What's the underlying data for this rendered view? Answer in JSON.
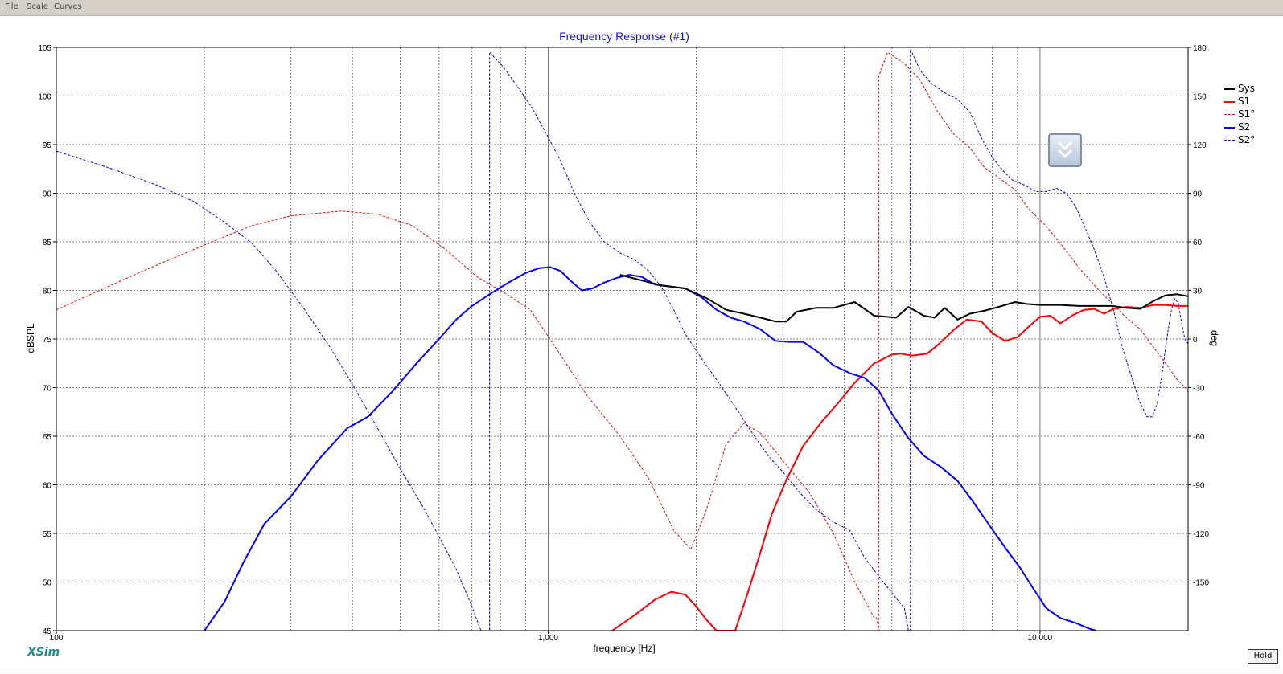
{
  "menu": {
    "file": "File",
    "scale": "Scale",
    "curves": "Curves"
  },
  "brand": "XSim",
  "hold_button": "Hold",
  "colors": {
    "sys": "#000000",
    "s1": "#ff0000",
    "s2": "#0000ff",
    "title": "#1515e0"
  },
  "chart_data": {
    "type": "line",
    "title": "Frequency Response (#1)",
    "xlabel": "frequency [Hz]",
    "ylabel": "dBSPL",
    "ylabel_right": "deg",
    "x_scale": "log",
    "xlim": [
      100,
      20000
    ],
    "ylim": [
      45,
      105
    ],
    "ylim_right": [
      -180,
      180
    ],
    "x_ticks": [
      100,
      1000,
      10000
    ],
    "x_tick_labels": [
      "100",
      "1,000",
      "10,000"
    ],
    "y_ticks": [
      45,
      50,
      55,
      60,
      65,
      70,
      75,
      80,
      85,
      90,
      95,
      100,
      105
    ],
    "y_tick_labels": [
      "45",
      "50",
      "55",
      "60",
      "65",
      "70",
      "75",
      "80",
      "85",
      "90",
      "95",
      "100",
      "105"
    ],
    "y2_ticks": [
      -150,
      -120,
      -90,
      -60,
      -30,
      0,
      30,
      60,
      90,
      120,
      150,
      180
    ],
    "y2_tick_labels": [
      "-150",
      "-120",
      "-90",
      "-60",
      "-30",
      "0",
      "30",
      "60",
      "90",
      "120",
      "150",
      "180"
    ],
    "grid": true,
    "legend_position": "right",
    "series": [
      {
        "name": "Sys",
        "axis": "left",
        "style": "solid",
        "color": "#000000",
        "width": 2,
        "points": [
          [
            1400,
            81.6
          ],
          [
            1700,
            80.5
          ],
          [
            1900,
            80.2
          ],
          [
            2100,
            79.2
          ],
          [
            2300,
            78
          ],
          [
            2500,
            77.6
          ],
          [
            2700,
            77.2
          ],
          [
            2900,
            76.8
          ],
          [
            3050,
            76.8
          ],
          [
            3200,
            77.8
          ],
          [
            3500,
            78.2
          ],
          [
            3800,
            78.2
          ],
          [
            4200,
            78.8
          ],
          [
            4600,
            77.4
          ],
          [
            5100,
            77.2
          ],
          [
            5400,
            78.3
          ],
          [
            5800,
            77.4
          ],
          [
            6100,
            77.2
          ],
          [
            6400,
            78.2
          ],
          [
            6800,
            77
          ],
          [
            7200,
            77.6
          ],
          [
            7700,
            77.9
          ],
          [
            8100,
            78.2
          ],
          [
            8500,
            78.5
          ],
          [
            8900,
            78.8
          ],
          [
            9400,
            78.6
          ],
          [
            10000,
            78.5
          ],
          [
            11000,
            78.5
          ],
          [
            12000,
            78.4
          ],
          [
            13000,
            78.4
          ],
          [
            14000,
            78.4
          ],
          [
            15000,
            78.2
          ],
          [
            16000,
            78.1
          ],
          [
            17000,
            78.9
          ],
          [
            18000,
            79.5
          ],
          [
            19000,
            79.6
          ],
          [
            20000,
            79.4
          ]
        ]
      },
      {
        "name": "S1",
        "axis": "left",
        "style": "solid",
        "color": "#ff0000",
        "width": 2,
        "points": [
          [
            1350,
            45
          ],
          [
            1500,
            46.6
          ],
          [
            1650,
            48.2
          ],
          [
            1780,
            49
          ],
          [
            1900,
            48.7
          ],
          [
            2000,
            47.5
          ],
          [
            2100,
            46.1
          ],
          [
            2200,
            45
          ],
          [
            2400,
            45
          ],
          [
            2550,
            49
          ],
          [
            2700,
            53
          ],
          [
            2850,
            57
          ],
          [
            3050,
            60.5
          ],
          [
            3300,
            64
          ],
          [
            3600,
            66.5
          ],
          [
            3900,
            68.5
          ],
          [
            4200,
            70.5
          ],
          [
            4600,
            72.5
          ],
          [
            5000,
            73.4
          ],
          [
            5200,
            73.5
          ],
          [
            5500,
            73.3
          ],
          [
            5900,
            73.5
          ],
          [
            6200,
            74.4
          ],
          [
            6700,
            76
          ],
          [
            7100,
            77
          ],
          [
            7600,
            76.8
          ],
          [
            8000,
            75.6
          ],
          [
            8500,
            74.8
          ],
          [
            9000,
            75.2
          ],
          [
            9500,
            76.3
          ],
          [
            10000,
            77.3
          ],
          [
            10500,
            77.4
          ],
          [
            11000,
            76.6
          ],
          [
            11700,
            77.5
          ],
          [
            12300,
            78
          ],
          [
            12900,
            78.1
          ],
          [
            13500,
            77.6
          ],
          [
            14100,
            78.1
          ],
          [
            15000,
            78.3
          ],
          [
            16000,
            78.2
          ],
          [
            17000,
            78.5
          ],
          [
            18000,
            78.5
          ],
          [
            19000,
            78.4
          ],
          [
            20000,
            78.4
          ]
        ]
      },
      {
        "name": "S1°",
        "axis": "right",
        "style": "dashed",
        "color": "#ff0000",
        "width": 1,
        "points": [
          [
            100,
            18
          ],
          [
            150,
            42
          ],
          [
            200,
            58
          ],
          [
            250,
            70
          ],
          [
            300,
            76
          ],
          [
            380,
            79
          ],
          [
            450,
            77
          ],
          [
            530,
            70
          ],
          [
            620,
            55
          ],
          [
            720,
            38
          ],
          [
            820,
            28
          ],
          [
            920,
            18
          ],
          [
            1050,
            -8
          ],
          [
            1200,
            -35
          ],
          [
            1400,
            -60
          ],
          [
            1600,
            -86
          ],
          [
            1800,
            -118
          ],
          [
            1950,
            -130
          ],
          [
            2100,
            -105
          ],
          [
            2300,
            -65
          ],
          [
            2500,
            -52
          ],
          [
            2700,
            -58
          ],
          [
            3000,
            -75
          ],
          [
            3400,
            -95
          ],
          [
            3800,
            -120
          ],
          [
            4200,
            -150
          ],
          [
            4600,
            -172
          ],
          [
            4650,
            -172
          ],
          [
            4700,
            162
          ],
          [
            4900,
            177
          ],
          [
            5300,
            170
          ],
          [
            5700,
            160
          ],
          [
            6200,
            140
          ],
          [
            6700,
            126
          ],
          [
            7200,
            118
          ],
          [
            7700,
            106
          ],
          [
            8300,
            99
          ],
          [
            8900,
            92
          ],
          [
            9500,
            80
          ],
          [
            10200,
            71
          ],
          [
            11000,
            59
          ],
          [
            12000,
            44
          ],
          [
            13000,
            32
          ],
          [
            14000,
            22
          ],
          [
            15000,
            13
          ],
          [
            16000,
            6
          ],
          [
            17000,
            -5
          ],
          [
            18000,
            -15
          ],
          [
            19000,
            -25
          ],
          [
            20000,
            -32
          ]
        ]
      },
      {
        "name": "S2",
        "axis": "left",
        "style": "solid",
        "color": "#0000ff",
        "width": 2,
        "points": [
          [
            200,
            45
          ],
          [
            220,
            48
          ],
          [
            240,
            52
          ],
          [
            265,
            56
          ],
          [
            300,
            58.8
          ],
          [
            340,
            62.5
          ],
          [
            390,
            65.8
          ],
          [
            430,
            67
          ],
          [
            480,
            69.5
          ],
          [
            540,
            72.5
          ],
          [
            600,
            75
          ],
          [
            650,
            77
          ],
          [
            700,
            78.4
          ],
          [
            760,
            79.6
          ],
          [
            830,
            80.8
          ],
          [
            900,
            81.8
          ],
          [
            960,
            82.3
          ],
          [
            1010,
            82.4
          ],
          [
            1060,
            82
          ],
          [
            1110,
            81
          ],
          [
            1170,
            80
          ],
          [
            1230,
            80.2
          ],
          [
            1300,
            80.8
          ],
          [
            1380,
            81.3
          ],
          [
            1460,
            81.6
          ],
          [
            1550,
            81.4
          ],
          [
            1650,
            80.6
          ],
          [
            1780,
            80.4
          ],
          [
            1900,
            80.2
          ],
          [
            2050,
            79.3
          ],
          [
            2200,
            78
          ],
          [
            2350,
            77.2
          ],
          [
            2500,
            76.8
          ],
          [
            2700,
            76
          ],
          [
            2900,
            74.8
          ],
          [
            3100,
            74.7
          ],
          [
            3300,
            74.7
          ],
          [
            3550,
            73.6
          ],
          [
            3800,
            72.3
          ],
          [
            4100,
            71.5
          ],
          [
            4400,
            71
          ],
          [
            4700,
            69.7
          ],
          [
            5000,
            67.3
          ],
          [
            5400,
            64.8
          ],
          [
            5800,
            63
          ],
          [
            6300,
            61.8
          ],
          [
            6800,
            60.4
          ],
          [
            7300,
            58.3
          ],
          [
            7900,
            55.8
          ],
          [
            8500,
            53.5
          ],
          [
            9100,
            51.5
          ],
          [
            9700,
            49.3
          ],
          [
            10300,
            47.3
          ],
          [
            11000,
            46.3
          ],
          [
            11800,
            45.8
          ],
          [
            12600,
            45.2
          ],
          [
            13000,
            45
          ]
        ]
      },
      {
        "name": "S2°",
        "axis": "right",
        "style": "dashed",
        "color": "#0000ff",
        "width": 1,
        "points": [
          [
            100,
            116
          ],
          [
            130,
            105
          ],
          [
            160,
            95
          ],
          [
            190,
            85
          ],
          [
            220,
            72
          ],
          [
            250,
            59
          ],
          [
            280,
            42
          ],
          [
            320,
            18
          ],
          [
            360,
            -5
          ],
          [
            400,
            -28
          ],
          [
            450,
            -55
          ],
          [
            500,
            -80
          ],
          [
            560,
            -105
          ],
          [
            600,
            -122
          ],
          [
            650,
            -142
          ],
          [
            700,
            -165
          ],
          [
            730,
            -180
          ],
          [
            760,
            -180
          ],
          [
            760,
            177
          ],
          [
            810,
            168
          ],
          [
            870,
            155
          ],
          [
            930,
            142
          ],
          [
            990,
            127
          ],
          [
            1060,
            110
          ],
          [
            1130,
            90
          ],
          [
            1210,
            73
          ],
          [
            1300,
            60
          ],
          [
            1400,
            53
          ],
          [
            1500,
            49
          ],
          [
            1600,
            42
          ],
          [
            1700,
            32
          ],
          [
            1800,
            18
          ],
          [
            1900,
            3
          ],
          [
            2050,
            -12
          ],
          [
            2200,
            -25
          ],
          [
            2400,
            -42
          ],
          [
            2600,
            -58
          ],
          [
            2800,
            -72
          ],
          [
            3000,
            -82
          ],
          [
            3250,
            -95
          ],
          [
            3500,
            -105
          ],
          [
            3800,
            -113
          ],
          [
            4100,
            -118
          ],
          [
            4400,
            -135
          ],
          [
            4800,
            -150
          ],
          [
            5100,
            -160
          ],
          [
            5300,
            -166
          ],
          [
            5400,
            -180
          ],
          [
            5450,
            179
          ],
          [
            5700,
            166
          ],
          [
            6000,
            158
          ],
          [
            6400,
            152
          ],
          [
            6800,
            148
          ],
          [
            7200,
            140
          ],
          [
            7600,
            124
          ],
          [
            8000,
            112
          ],
          [
            8400,
            104
          ],
          [
            8800,
            98
          ],
          [
            9300,
            95
          ],
          [
            9800,
            91
          ],
          [
            10300,
            91
          ],
          [
            10800,
            93
          ],
          [
            11300,
            90
          ],
          [
            11800,
            82
          ],
          [
            12300,
            70
          ],
          [
            12900,
            55
          ],
          [
            13500,
            38
          ],
          [
            14100,
            18
          ],
          [
            14700,
            -5
          ],
          [
            15300,
            -22
          ],
          [
            15900,
            -38
          ],
          [
            16500,
            -48
          ],
          [
            16900,
            -48
          ],
          [
            17300,
            -40
          ],
          [
            17700,
            -22
          ],
          [
            18100,
            0
          ],
          [
            18500,
            18
          ],
          [
            18800,
            25
          ],
          [
            19100,
            22
          ],
          [
            19400,
            10
          ],
          [
            19700,
            0
          ],
          [
            20000,
            -3
          ]
        ]
      }
    ]
  }
}
